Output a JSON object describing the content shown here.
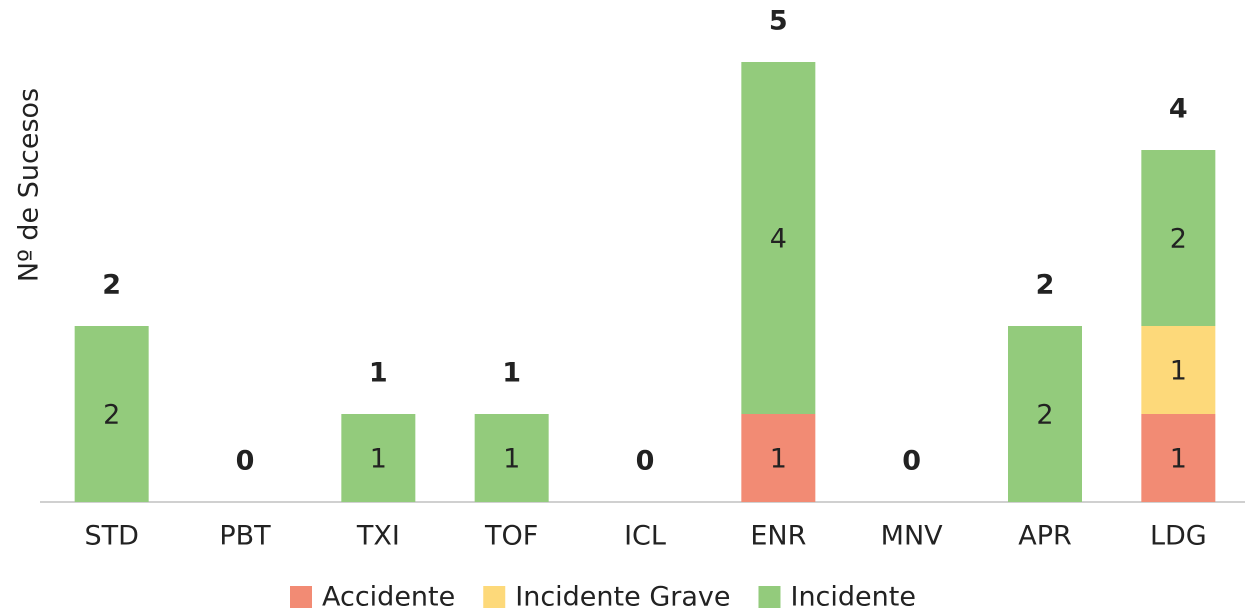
{
  "chart_data": {
    "type": "stacked-bar",
    "y_label": "Nº de Sucesos",
    "categories": [
      "STD",
      "PBT",
      "TXI",
      "TOF",
      "ICL",
      "ENR",
      "MNV",
      "APR",
      "LDG"
    ],
    "series": [
      {
        "name": "Accidente",
        "color": "#f28b74",
        "values": [
          0,
          0,
          0,
          0,
          0,
          1,
          0,
          0,
          1
        ]
      },
      {
        "name": "Incidente Grave",
        "color": "#fdd97a",
        "values": [
          0,
          0,
          0,
          0,
          0,
          0,
          0,
          0,
          1
        ]
      },
      {
        "name": "Incidente",
        "color": "#93cb7c",
        "values": [
          2,
          0,
          1,
          1,
          0,
          4,
          0,
          2,
          2
        ]
      }
    ],
    "totals": [
      2,
      0,
      1,
      1,
      0,
      5,
      0,
      2,
      4
    ],
    "ylim": [
      0,
      5
    ],
    "legend": "bottom"
  }
}
